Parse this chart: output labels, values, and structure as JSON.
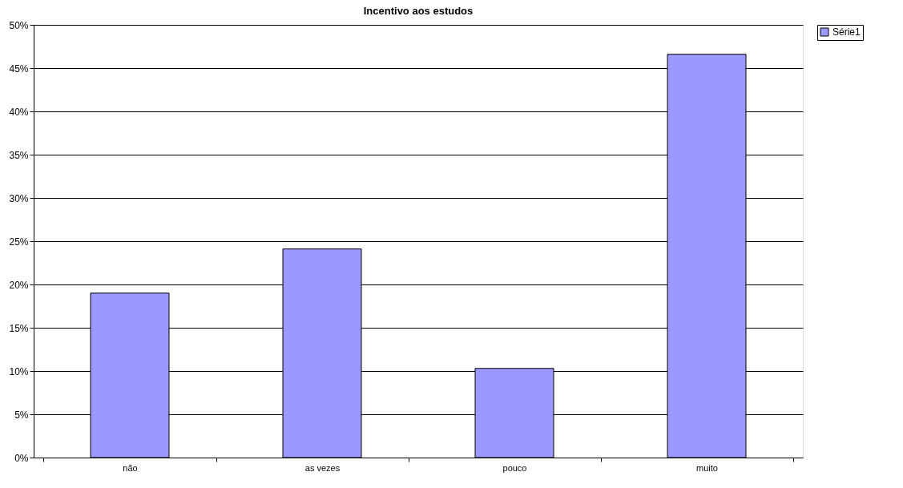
{
  "chart_data": {
    "type": "bar",
    "title": "Incentivo aos estudos",
    "categories": [
      "não",
      "as vezes",
      "pouco",
      "muito"
    ],
    "series": [
      {
        "name": "Série1",
        "color": "#9999ff",
        "values": [
          19,
          24.1,
          10.3,
          46.6
        ]
      }
    ],
    "ylim": [
      0,
      50
    ],
    "yticks": [
      {
        "value": 0,
        "label": "0%"
      },
      {
        "value": 5,
        "label": "5%"
      },
      {
        "value": 10,
        "label": "10%"
      },
      {
        "value": 15,
        "label": "15%"
      },
      {
        "value": 20,
        "label": "20%"
      },
      {
        "value": 25,
        "label": "25%"
      },
      {
        "value": 30,
        "label": "30%"
      },
      {
        "value": 35,
        "label": "35%"
      },
      {
        "value": 40,
        "label": "40%"
      },
      {
        "value": 45,
        "label": "45%"
      },
      {
        "value": 50,
        "label": "50%"
      }
    ],
    "grid": "y",
    "legend": "right"
  }
}
